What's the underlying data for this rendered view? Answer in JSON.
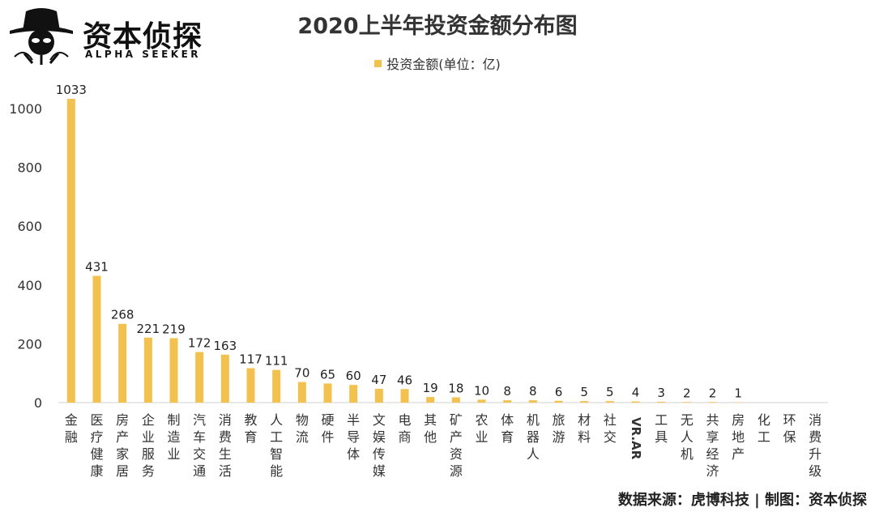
{
  "logo": {
    "name_cn": "资本侦探",
    "name_en": "ALPHA SEEKER"
  },
  "colors": {
    "bar": "#F2C14E",
    "axis": "#d0d0d0",
    "text": "#333333"
  },
  "chart_data": {
    "type": "bar",
    "title": "2020上半年投资金额分布图",
    "legend": [
      "投资金额(单位：亿)"
    ],
    "legend_position": "top-center",
    "xlabel": "",
    "ylabel": "",
    "ylim": [
      0,
      1000
    ],
    "yticks": [
      0,
      200,
      400,
      600,
      800,
      1000
    ],
    "grid": false,
    "categories": [
      "金融",
      "医疗健康",
      "房产家居",
      "企业服务",
      "制造业",
      "汽车交通",
      "消费生活",
      "教育",
      "人工智能",
      "物流",
      "硬件",
      "半导体",
      "文娱传媒",
      "电商",
      "其他",
      "矿产资源",
      "农业",
      "体育",
      "机器人",
      "旅游",
      "材料",
      "社交",
      "VR.AR",
      "工具",
      "无人机",
      "共享经济",
      "房地产",
      "化工",
      "环保",
      "消费升级"
    ],
    "values": [
      1033,
      431,
      268,
      221,
      219,
      172,
      163,
      117,
      111,
      70,
      65,
      60,
      47,
      46,
      19,
      18,
      10,
      8,
      8,
      6,
      5,
      5,
      4,
      3,
      2,
      2,
      1,
      null,
      null,
      null
    ]
  },
  "source": "数据来源：虎博科技 | 制图：资本侦探"
}
